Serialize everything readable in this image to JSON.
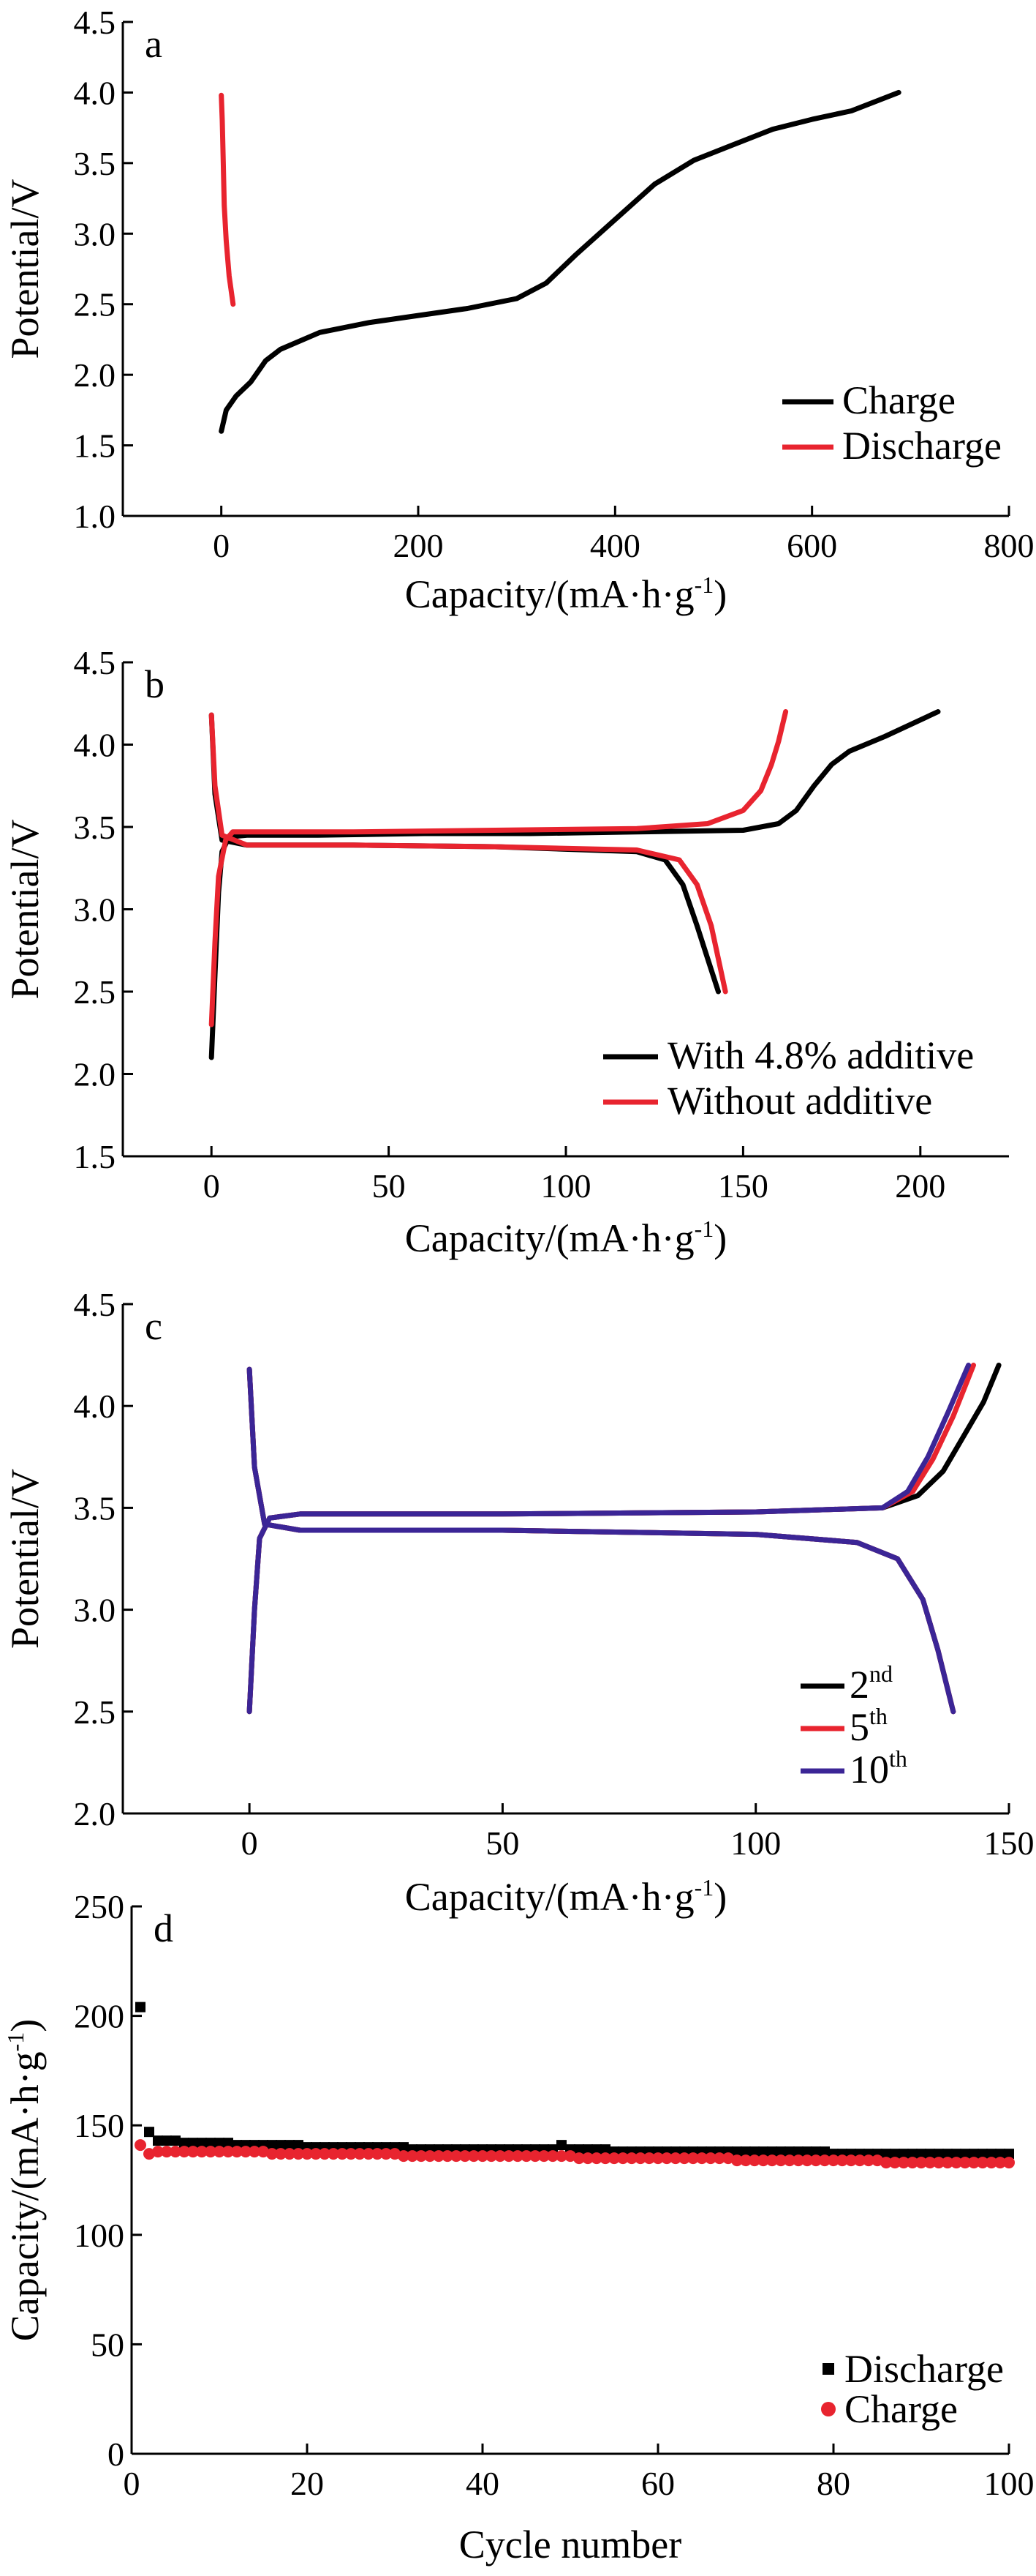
{
  "colors": {
    "black": "#000000",
    "red": "#e8242f",
    "purple": "#3b2596"
  },
  "chart_data": [
    {
      "type": "line",
      "panel": "a",
      "xlabel": "Capacity/(mA·h·g-1)",
      "ylabel": "Potential/V",
      "xlim": [
        -100,
        800
      ],
      "ylim": [
        1.0,
        4.5
      ],
      "x_ticks": [
        0,
        200,
        400,
        600,
        800
      ],
      "y_ticks": [
        1.0,
        1.5,
        2.0,
        2.5,
        3.0,
        3.5,
        4.0,
        4.5
      ],
      "legend_position": "bottom-right",
      "series": [
        {
          "name": "Charge",
          "color": "#000000",
          "x": [
            0,
            5,
            15,
            30,
            45,
            60,
            100,
            150,
            200,
            250,
            300,
            330,
            360,
            400,
            440,
            480,
            520,
            560,
            600,
            640,
            688
          ],
          "y": [
            1.6,
            1.75,
            1.85,
            1.95,
            2.1,
            2.18,
            2.3,
            2.37,
            2.42,
            2.47,
            2.54,
            2.65,
            2.85,
            3.1,
            3.35,
            3.52,
            3.63,
            3.74,
            3.81,
            3.87,
            4.0
          ]
        },
        {
          "name": "Discharge",
          "color": "#e8242f",
          "x": [
            0,
            1,
            2,
            3,
            5,
            8,
            12
          ],
          "y": [
            3.98,
            3.8,
            3.5,
            3.2,
            2.95,
            2.7,
            2.5
          ]
        }
      ]
    },
    {
      "type": "line",
      "panel": "b",
      "xlabel": "Capacity/(mA·h·g-1)",
      "ylabel": "Potential/V",
      "xlim": [
        -25,
        225
      ],
      "ylim": [
        1.5,
        4.5
      ],
      "x_ticks": [
        0,
        50,
        100,
        150,
        200
      ],
      "y_ticks": [
        1.5,
        2.0,
        2.5,
        3.0,
        3.5,
        4.0,
        4.5
      ],
      "legend_position": "bottom-right",
      "series": [
        {
          "name": "With 4.8% additive",
          "color": "#000000",
          "part": "charge",
          "x": [
            0,
            1,
            2,
            3,
            5,
            10,
            30,
            60,
            90,
            120,
            150,
            160,
            165,
            170,
            175,
            180,
            190,
            205
          ],
          "y": [
            2.1,
            2.6,
            3.1,
            3.35,
            3.44,
            3.45,
            3.45,
            3.46,
            3.46,
            3.47,
            3.48,
            3.52,
            3.6,
            3.75,
            3.88,
            3.96,
            4.05,
            4.2
          ]
        },
        {
          "name": "With 4.8% additive",
          "color": "#000000",
          "part": "discharge",
          "x": [
            0,
            1,
            3,
            10,
            40,
            80,
            120,
            128,
            133,
            137,
            140,
            143
          ],
          "y": [
            4.18,
            3.7,
            3.42,
            3.39,
            3.39,
            3.38,
            3.35,
            3.3,
            3.15,
            2.9,
            2.7,
            2.5
          ]
        },
        {
          "name": "Without additive",
          "color": "#e8242f",
          "part": "charge",
          "x": [
            0,
            1,
            2,
            4,
            6,
            10,
            40,
            80,
            120,
            140,
            150,
            155,
            158,
            160,
            162
          ],
          "y": [
            2.3,
            2.8,
            3.2,
            3.42,
            3.47,
            3.47,
            3.47,
            3.48,
            3.49,
            3.52,
            3.6,
            3.72,
            3.88,
            4.02,
            4.2
          ]
        },
        {
          "name": "Without additive",
          "color": "#e8242f",
          "part": "discharge",
          "x": [
            0,
            1,
            3,
            10,
            40,
            80,
            120,
            132,
            137,
            141,
            143,
            145
          ],
          "y": [
            4.18,
            3.75,
            3.45,
            3.39,
            3.39,
            3.38,
            3.36,
            3.3,
            3.15,
            2.9,
            2.7,
            2.5
          ]
        }
      ]
    },
    {
      "type": "line",
      "panel": "c",
      "xlabel": "Capacity/(mA·h·g-1)",
      "ylabel": "Potential/V",
      "xlim": [
        -25,
        150
      ],
      "ylim": [
        2.0,
        4.5
      ],
      "x_ticks": [
        0,
        50,
        100,
        150
      ],
      "y_ticks": [
        2.0,
        2.5,
        3.0,
        3.5,
        4.0,
        4.5
      ],
      "legend_position": "bottom-right",
      "series": [
        {
          "name": "2nd",
          "color": "#000000",
          "part": "charge",
          "x": [
            0,
            1,
            2,
            4,
            10,
            50,
            100,
            125,
            132,
            137,
            141,
            145,
            148
          ],
          "y": [
            2.5,
            3.0,
            3.35,
            3.45,
            3.47,
            3.47,
            3.48,
            3.5,
            3.56,
            3.68,
            3.85,
            4.02,
            4.2
          ]
        },
        {
          "name": "2nd",
          "color": "#000000",
          "part": "discharge",
          "x": [
            0,
            1,
            3,
            10,
            50,
            100,
            120,
            128,
            133,
            136,
            139
          ],
          "y": [
            4.18,
            3.7,
            3.42,
            3.39,
            3.39,
            3.37,
            3.33,
            3.25,
            3.05,
            2.8,
            2.5
          ]
        },
        {
          "name": "5th",
          "color": "#e8242f",
          "part": "charge",
          "x": [
            0,
            1,
            2,
            4,
            10,
            50,
            100,
            125,
            131,
            135,
            139,
            143
          ],
          "y": [
            2.5,
            3.0,
            3.35,
            3.45,
            3.47,
            3.47,
            3.48,
            3.5,
            3.58,
            3.74,
            3.95,
            4.2
          ]
        },
        {
          "name": "5th",
          "color": "#e8242f",
          "part": "discharge",
          "x": [
            0,
            1,
            3,
            10,
            50,
            100,
            120,
            128,
            133,
            136,
            139
          ],
          "y": [
            4.18,
            3.7,
            3.42,
            3.39,
            3.39,
            3.37,
            3.33,
            3.25,
            3.05,
            2.8,
            2.5
          ]
        },
        {
          "name": "10th",
          "color": "#3b2596",
          "part": "charge",
          "x": [
            0,
            1,
            2,
            4,
            10,
            50,
            100,
            125,
            130,
            134,
            138,
            142
          ],
          "y": [
            2.5,
            3.0,
            3.35,
            3.45,
            3.47,
            3.47,
            3.48,
            3.5,
            3.58,
            3.75,
            3.97,
            4.2
          ]
        },
        {
          "name": "10th",
          "color": "#3b2596",
          "part": "discharge",
          "x": [
            0,
            1,
            3,
            10,
            50,
            100,
            120,
            128,
            133,
            136,
            139
          ],
          "y": [
            4.18,
            3.7,
            3.42,
            3.39,
            3.39,
            3.37,
            3.33,
            3.25,
            3.05,
            2.8,
            2.5
          ]
        }
      ]
    },
    {
      "type": "scatter",
      "panel": "d",
      "xlabel": "Cycle number",
      "ylabel": "Capacity/(mA·h·g-1)",
      "xlim": [
        0,
        100
      ],
      "ylim": [
        0,
        250
      ],
      "x_ticks": [
        0,
        20,
        40,
        60,
        80,
        100
      ],
      "y_ticks": [
        0,
        50,
        100,
        150,
        200,
        250
      ],
      "legend_position": "bottom-right",
      "series": [
        {
          "name": "Discharge",
          "color": "#000000",
          "marker": "square",
          "x": [
            1,
            2,
            3,
            4,
            5,
            6,
            7,
            8,
            9,
            10,
            11,
            12,
            13,
            14,
            15,
            16,
            17,
            18,
            19,
            20,
            21,
            22,
            23,
            24,
            25,
            26,
            27,
            28,
            29,
            30,
            31,
            32,
            33,
            34,
            35,
            36,
            37,
            38,
            39,
            40,
            41,
            42,
            43,
            44,
            45,
            46,
            47,
            48,
            49,
            50,
            51,
            52,
            53,
            54,
            55,
            56,
            57,
            58,
            59,
            60,
            61,
            62,
            63,
            64,
            65,
            66,
            67,
            68,
            69,
            70,
            71,
            72,
            73,
            74,
            75,
            76,
            77,
            78,
            79,
            80,
            81,
            82,
            83,
            84,
            85,
            86,
            87,
            88,
            89,
            90,
            91,
            92,
            93,
            94,
            95,
            96,
            97,
            98,
            99,
            100
          ],
          "y": [
            204,
            147,
            143,
            143,
            143,
            142,
            142,
            142,
            142,
            142,
            142,
            141,
            141,
            141,
            141,
            141,
            141,
            141,
            141,
            140,
            140,
            140,
            140,
            140,
            140,
            140,
            140,
            140,
            140,
            140,
            140,
            139,
            139,
            139,
            139,
            139,
            139,
            139,
            139,
            139,
            139,
            139,
            139,
            139,
            139,
            139,
            139,
            139,
            141,
            139,
            139,
            139,
            139,
            139,
            138,
            138,
            138,
            138,
            138,
            138,
            138,
            138,
            138,
            138,
            138,
            138,
            138,
            138,
            138,
            138,
            138,
            138,
            138,
            138,
            138,
            138,
            138,
            138,
            138,
            137,
            137,
            137,
            137,
            137,
            137,
            137,
            137,
            137,
            137,
            137,
            137,
            137,
            137,
            137,
            137,
            137,
            137,
            137,
            137,
            137
          ]
        },
        {
          "name": "Charge",
          "color": "#e8242f",
          "marker": "circle",
          "x": [
            1,
            2,
            3,
            4,
            5,
            6,
            7,
            8,
            9,
            10,
            11,
            12,
            13,
            14,
            15,
            16,
            17,
            18,
            19,
            20,
            21,
            22,
            23,
            24,
            25,
            26,
            27,
            28,
            29,
            30,
            31,
            32,
            33,
            34,
            35,
            36,
            37,
            38,
            39,
            40,
            41,
            42,
            43,
            44,
            45,
            46,
            47,
            48,
            49,
            50,
            51,
            52,
            53,
            54,
            55,
            56,
            57,
            58,
            59,
            60,
            61,
            62,
            63,
            64,
            65,
            66,
            67,
            68,
            69,
            70,
            71,
            72,
            73,
            74,
            75,
            76,
            77,
            78,
            79,
            80,
            81,
            82,
            83,
            84,
            85,
            86,
            87,
            88,
            89,
            90,
            91,
            92,
            93,
            94,
            95,
            96,
            97,
            98,
            99,
            100
          ],
          "y": [
            141,
            137,
            138,
            138,
            138,
            138,
            138,
            138,
            138,
            138,
            138,
            138,
            138,
            138,
            138,
            137,
            137,
            137,
            137,
            137,
            137,
            137,
            137,
            137,
            137,
            137,
            137,
            137,
            137,
            137,
            136,
            136,
            136,
            136,
            136,
            136,
            136,
            136,
            136,
            136,
            136,
            136,
            136,
            136,
            136,
            136,
            136,
            136,
            136,
            136,
            135,
            135,
            135,
            135,
            135,
            135,
            135,
            135,
            135,
            135,
            135,
            135,
            135,
            135,
            135,
            135,
            135,
            135,
            134,
            134,
            134,
            134,
            134,
            134,
            134,
            134,
            134,
            134,
            134,
            134,
            134,
            134,
            134,
            134,
            134,
            133,
            133,
            133,
            133,
            133,
            133,
            133,
            133,
            133,
            133,
            133,
            133,
            133,
            133,
            133
          ]
        }
      ]
    }
  ]
}
